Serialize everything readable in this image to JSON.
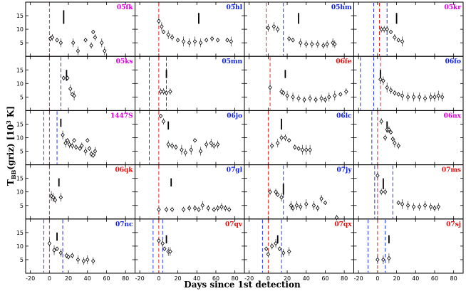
{
  "colors": {
    "magenta": "#e000e0",
    "blue": "#1020e0",
    "red": "#e01010",
    "marker": "#000000"
  },
  "chart_data": {
    "type": "scatter",
    "xlabel": "Days since 1st detection",
    "ylabel_main": "T",
    "ylabel_sub": "BB",
    "ylabel_rest": "(griz) [10",
    "ylabel_sup": "3",
    "ylabel_end": " K]",
    "xlim": [
      -25,
      90
    ],
    "ylim": [
      0,
      20
    ],
    "x_ticks": [
      -20,
      0,
      20,
      40,
      60,
      80
    ],
    "y_ticks": [
      5,
      10,
      15
    ],
    "grid": false,
    "rows": 5,
    "cols": 4,
    "panels": [
      {
        "name": "05fk",
        "color": "magenta",
        "red_line": 0,
        "blue_lines": [],
        "bar_x": 15,
        "bar_y": [
          12,
          17
        ],
        "points": [
          [
            1,
            6.5
          ],
          [
            3,
            7
          ],
          [
            8,
            6
          ],
          [
            12,
            5
          ],
          [
            25,
            5
          ],
          [
            30,
            2
          ],
          [
            38,
            6
          ],
          [
            44,
            4
          ],
          [
            46,
            9
          ],
          [
            48,
            7
          ],
          [
            55,
            5
          ],
          [
            58,
            2
          ]
        ]
      },
      {
        "name": "05hl",
        "color": "blue",
        "red_line": 0,
        "blue_lines": [],
        "bar_x": 42,
        "bar_y": [
          12,
          16
        ],
        "points": [
          [
            0,
            13
          ],
          [
            3,
            11
          ],
          [
            5,
            9
          ],
          [
            10,
            8
          ],
          [
            14,
            7
          ],
          [
            20,
            6
          ],
          [
            26,
            5.5
          ],
          [
            32,
            5
          ],
          [
            38,
            5.5
          ],
          [
            44,
            5
          ],
          [
            50,
            6
          ],
          [
            56,
            6.5
          ],
          [
            62,
            6
          ],
          [
            72,
            6
          ],
          [
            76,
            5.5
          ]
        ]
      },
      {
        "name": "05hm",
        "color": "blue",
        "red_line": -2,
        "blue_lines": [
          16
        ],
        "bar_x": 32,
        "bar_y": [
          12,
          16
        ],
        "points": [
          [
            0,
            10.5
          ],
          [
            6,
            11
          ],
          [
            10,
            10
          ],
          [
            22,
            6.5
          ],
          [
            26,
            6
          ],
          [
            34,
            5
          ],
          [
            40,
            4.5
          ],
          [
            46,
            4.5
          ],
          [
            52,
            4.5
          ],
          [
            58,
            4
          ],
          [
            62,
            4.5
          ],
          [
            68,
            5
          ],
          [
            70,
            4.5
          ]
        ]
      },
      {
        "name": "05kr",
        "color": "magenta",
        "red_line": 2,
        "blue_lines": [
          -4,
          10
        ],
        "bar_x": 20,
        "bar_y": [
          12,
          16
        ],
        "points": [
          [
            4,
            10
          ],
          [
            7,
            10
          ],
          [
            10,
            10
          ],
          [
            14,
            9
          ],
          [
            18,
            7
          ],
          [
            22,
            6
          ],
          [
            26,
            5.5
          ]
        ]
      },
      {
        "name": "05ks",
        "color": "magenta",
        "red_line": 0,
        "blue_lines": [
          12
        ],
        "bar_x": 18,
        "bar_y": [
          11,
          15
        ],
        "points": [
          [
            15,
            12
          ],
          [
            19,
            12
          ],
          [
            22,
            8
          ],
          [
            24,
            6
          ],
          [
            26,
            5.5
          ]
        ]
      },
      {
        "name": "05mn",
        "color": "blue",
        "red_line": 0,
        "blue_lines": [
          -10,
          8
        ],
        "bar_x": 8,
        "bar_y": [
          12,
          15
        ],
        "points": [
          [
            2,
            7
          ],
          [
            5,
            7
          ],
          [
            8,
            6.5
          ],
          [
            12,
            7
          ]
        ]
      },
      {
        "name": "06fe",
        "color": "red",
        "red_line": 2,
        "blue_lines": [],
        "bar_x": 18,
        "bar_y": [
          12,
          15
        ],
        "points": [
          [
            2,
            8.5
          ],
          [
            14,
            7
          ],
          [
            16,
            6.5
          ],
          [
            20,
            5.5
          ],
          [
            26,
            5
          ],
          [
            32,
            4.5
          ],
          [
            38,
            4
          ],
          [
            44,
            4.5
          ],
          [
            50,
            4
          ],
          [
            56,
            4.5
          ],
          [
            60,
            4
          ],
          [
            64,
            5
          ],
          [
            70,
            5.5
          ],
          [
            76,
            6
          ],
          [
            82,
            7
          ]
        ]
      },
      {
        "name": "06fo",
        "color": "blue",
        "red_line": 3,
        "blue_lines": [
          -18,
          -4
        ],
        "bar_x": 3,
        "bar_y": [
          12,
          15
        ],
        "points": [
          [
            3,
            11.5
          ],
          [
            6,
            11
          ],
          [
            10,
            8.5
          ],
          [
            14,
            7.5
          ],
          [
            18,
            6.5
          ],
          [
            22,
            6
          ],
          [
            26,
            5.5
          ],
          [
            32,
            5
          ],
          [
            38,
            5
          ],
          [
            44,
            5
          ],
          [
            50,
            4.5
          ],
          [
            56,
            5
          ],
          [
            60,
            5
          ],
          [
            64,
            5.5
          ],
          [
            68,
            5
          ]
        ]
      },
      {
        "name": "1447S",
        "color": "magenta",
        "red_line": 0,
        "blue_lines": [
          -6,
          8
        ],
        "bar_x": 12,
        "bar_y": [
          14,
          17
        ],
        "points": [
          [
            14,
            11
          ],
          [
            17,
            8
          ],
          [
            19,
            9
          ],
          [
            21,
            7.5
          ],
          [
            24,
            7
          ],
          [
            26,
            9
          ],
          [
            28,
            6.5
          ],
          [
            32,
            6
          ],
          [
            34,
            7
          ],
          [
            38,
            5
          ],
          [
            40,
            9
          ],
          [
            42,
            6
          ],
          [
            44,
            4
          ],
          [
            46,
            3.5
          ],
          [
            48,
            5
          ]
        ]
      },
      {
        "name": "06jo",
        "color": "blue",
        "red_line": 0,
        "blue_lines": [
          -10
        ],
        "bar_x": 10,
        "bar_y": [
          13,
          16
        ],
        "points": [
          [
            2,
            18
          ],
          [
            5,
            16
          ],
          [
            10,
            7.5
          ],
          [
            14,
            7
          ],
          [
            18,
            6.5
          ],
          [
            24,
            5.5
          ],
          [
            28,
            4.5
          ],
          [
            34,
            5.5
          ],
          [
            38,
            9
          ],
          [
            44,
            5
          ],
          [
            50,
            7.5
          ],
          [
            55,
            8
          ],
          [
            58,
            7
          ],
          [
            62,
            7.5
          ]
        ]
      },
      {
        "name": "06lc",
        "color": "blue",
        "red_line": 0,
        "blue_lines": [],
        "bar_x": 14,
        "bar_y": [
          13,
          17
        ],
        "points": [
          [
            4,
            7
          ],
          [
            10,
            8
          ],
          [
            14,
            10
          ],
          [
            18,
            10
          ],
          [
            22,
            9
          ],
          [
            28,
            6.5
          ],
          [
            32,
            6
          ],
          [
            36,
            5.5
          ],
          [
            40,
            5.5
          ],
          [
            44,
            5.5
          ]
        ]
      },
      {
        "name": "06nx",
        "color": "magenta",
        "red_line": 0,
        "blue_lines": [
          -6
        ],
        "bar_x": 10,
        "bar_y": [
          12,
          16
        ],
        "points": [
          [
            4,
            16
          ],
          [
            8,
            10
          ],
          [
            10,
            13
          ],
          [
            12,
            13
          ],
          [
            14,
            12
          ],
          [
            16,
            9.5
          ],
          [
            18,
            8
          ],
          [
            22,
            7
          ]
        ]
      },
      {
        "name": "06qk",
        "color": "red",
        "red_line": 0,
        "blue_lines": [],
        "bar_x": 10,
        "bar_y": [
          12,
          15
        ],
        "points": [
          [
            2,
            8.5
          ],
          [
            4,
            8
          ],
          [
            6,
            7
          ],
          [
            12,
            8
          ]
        ]
      },
      {
        "name": "07gl",
        "color": "blue",
        "red_line": 0,
        "blue_lines": [],
        "bar_x": 13,
        "bar_y": [
          12,
          15
        ],
        "points": [
          [
            0,
            3.5
          ],
          [
            8,
            3.5
          ],
          [
            14,
            3.5
          ],
          [
            26,
            3.5
          ],
          [
            32,
            4
          ],
          [
            38,
            4
          ],
          [
            42,
            3.5
          ],
          [
            46,
            5
          ],
          [
            52,
            4
          ],
          [
            58,
            3.5
          ],
          [
            62,
            4
          ],
          [
            66,
            4.5
          ],
          [
            70,
            4
          ],
          [
            74,
            3.5
          ]
        ]
      },
      {
        "name": "07jy",
        "color": "blue",
        "red_line": 0,
        "blue_lines": [
          16
        ],
        "bar_x": 16,
        "bar_y": [
          9,
          13
        ],
        "points": [
          [
            2,
            10
          ],
          [
            8,
            10
          ],
          [
            10,
            9
          ],
          [
            14,
            8
          ],
          [
            24,
            5
          ],
          [
            26,
            4
          ],
          [
            30,
            5
          ],
          [
            34,
            4.5
          ],
          [
            40,
            5.5
          ],
          [
            48,
            5
          ],
          [
            52,
            4
          ],
          [
            56,
            7.5
          ],
          [
            60,
            6
          ],
          [
            72,
            0.5
          ]
        ]
      },
      {
        "name": "07ms",
        "color": "red",
        "red_line": 0,
        "blue_lines": [
          -3,
          16
        ],
        "bar_x": 6,
        "bar_y": [
          11,
          15
        ],
        "points": [
          [
            0,
            16
          ],
          [
            4,
            10
          ],
          [
            8,
            10
          ],
          [
            22,
            6
          ],
          [
            26,
            5.5
          ],
          [
            32,
            5
          ],
          [
            38,
            4.5
          ],
          [
            44,
            4.5
          ],
          [
            50,
            5
          ],
          [
            56,
            4.5
          ],
          [
            60,
            4
          ],
          [
            64,
            4.5
          ]
        ]
      },
      {
        "name": "07nc",
        "color": "blue",
        "red_line": 0,
        "blue_lines": [
          -6,
          14
        ],
        "bar_x": 8,
        "bar_y": [
          12,
          15
        ],
        "points": [
          [
            0,
            11
          ],
          [
            5,
            8.5
          ],
          [
            8,
            9
          ],
          [
            12,
            7.5
          ],
          [
            18,
            6.5
          ],
          [
            20,
            6
          ],
          [
            24,
            6.5
          ],
          [
            30,
            5
          ],
          [
            36,
            4.5
          ],
          [
            40,
            5
          ],
          [
            46,
            4.5
          ]
        ]
      },
      {
        "name": "07qv",
        "color": "red",
        "red_line": 0,
        "blue_lines": [
          -6,
          4
        ],
        "bar_x": 8,
        "bar_y": [
          11,
          14
        ],
        "points": [
          [
            0,
            12
          ],
          [
            4,
            11
          ],
          [
            6,
            9
          ],
          [
            10,
            8
          ],
          [
            12,
            8
          ]
        ]
      },
      {
        "name": "07qx",
        "color": "red",
        "red_line": 0,
        "blue_lines": [
          -6,
          14
        ],
        "bar_x": 10,
        "bar_y": [
          11,
          14
        ],
        "points": [
          [
            -2,
            9
          ],
          [
            0,
            7
          ],
          [
            4,
            10
          ],
          [
            8,
            11
          ],
          [
            12,
            9
          ],
          [
            16,
            7.5
          ],
          [
            22,
            8
          ]
        ]
      },
      {
        "name": "07sj",
        "color": "red",
        "red_line": 0,
        "blue_lines": [
          -10,
          8
        ],
        "bar_x": 12,
        "bar_y": [
          11,
          14
        ],
        "points": [
          [
            0,
            5
          ],
          [
            6,
            5
          ],
          [
            12,
            5.5
          ]
        ]
      }
    ]
  }
}
